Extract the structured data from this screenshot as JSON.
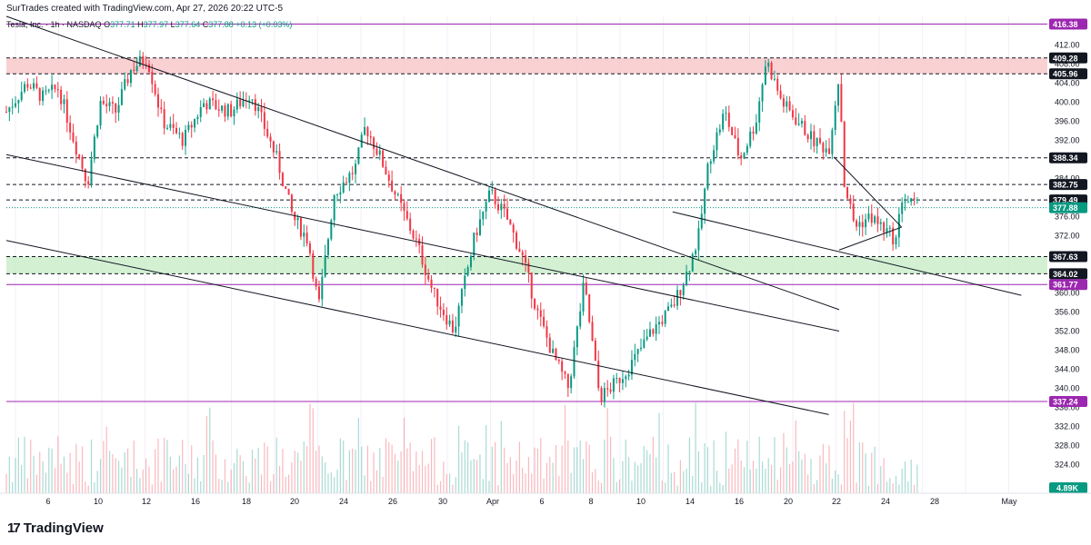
{
  "header": {
    "credit": "SurTrades created with TradingView.com, Apr 27, 2026 20:22 UTC-5",
    "symbol": "Tesla, Inc. · 1h · NASDAQ",
    "ohlc": {
      "o": "377.71",
      "h": "377.97",
      "l": "377.64",
      "c": "377.88",
      "chg": "+0.13 (+0.03%)"
    },
    "labels": {
      "o": "O",
      "h": "H",
      "l": "L",
      "c": "C"
    }
  },
  "footer": {
    "brand": "TradingView",
    "logo_icon": "tradingview-logo-icon"
  },
  "colors": {
    "up": "#089981",
    "down": "#f23645",
    "resistance_zone": "#f7c5c8",
    "support_zone": "#c8ecc8",
    "purple": "#9c27b0",
    "last_price": "#089981",
    "badge_dark": "#131722"
  },
  "chart_data": {
    "type": "candlestick",
    "timeframe": "1h",
    "y_axis": {
      "min": 318,
      "max": 418,
      "ticks": [
        412,
        408,
        404,
        400,
        396,
        392,
        388,
        384,
        380,
        376,
        372,
        368,
        364,
        360,
        356,
        352,
        348,
        344,
        340,
        336,
        332,
        328,
        324
      ]
    },
    "x_axis": {
      "tick_labels": [
        "6",
        "10",
        "12",
        "16",
        "18",
        "20",
        "24",
        "26",
        "30",
        "Apr",
        "6",
        "8",
        "10",
        "14",
        "16",
        "20",
        "22",
        "24",
        "28",
        "May"
      ]
    },
    "price_levels": [
      {
        "value": 416.38,
        "style": "solid",
        "color": "purple",
        "label": "416.38"
      },
      {
        "value": 409.28,
        "style": "dashed",
        "color": "dark",
        "label": "409.28"
      },
      {
        "value": 405.96,
        "style": "dashed",
        "color": "dark",
        "label": "405.96"
      },
      {
        "value": 388.34,
        "style": "dashed",
        "color": "dark",
        "label": "388.34"
      },
      {
        "value": 382.75,
        "style": "dashed",
        "color": "dark",
        "label": "382.75"
      },
      {
        "value": 379.49,
        "style": "dashed",
        "color": "dark",
        "label": "379.49"
      },
      {
        "value": 367.63,
        "style": "dashed",
        "color": "dark",
        "label": "367.63"
      },
      {
        "value": 364.02,
        "style": "dashed",
        "color": "dark",
        "label": "364.02"
      },
      {
        "value": 361.77,
        "style": "solid",
        "color": "purple",
        "label": "361.77"
      },
      {
        "value": 337.24,
        "style": "solid",
        "color": "purple",
        "label": "337.24"
      }
    ],
    "last_price": {
      "value": 377.88,
      "label": "377.88"
    },
    "volume_label": "4.89K",
    "zones": [
      {
        "name": "resistance",
        "from": 405.96,
        "to": 409.28
      },
      {
        "name": "support",
        "from": 364.02,
        "to": 367.63
      }
    ],
    "trendlines": [
      {
        "from": [
          0.0,
          418
        ],
        "to": [
          0.8,
          356.5
        ]
      },
      {
        "from": [
          0.0,
          389
        ],
        "to": [
          0.8,
          352.0
        ]
      },
      {
        "from": [
          0.0,
          371
        ],
        "to": [
          0.79,
          334.5
        ]
      },
      {
        "from": [
          0.795,
          388.5
        ],
        "to": [
          0.86,
          373.8
        ]
      },
      {
        "from": [
          0.8,
          369.0
        ],
        "to": [
          0.86,
          373.8
        ]
      },
      {
        "from": [
          0.64,
          377.0
        ],
        "to": [
          0.975,
          359.5
        ]
      }
    ],
    "price_path": [
      [
        0.0,
        398
      ],
      [
        0.02,
        404
      ],
      [
        0.035,
        401
      ],
      [
        0.05,
        403
      ],
      [
        0.065,
        392
      ],
      [
        0.078,
        383
      ],
      [
        0.09,
        400
      ],
      [
        0.105,
        398
      ],
      [
        0.12,
        407
      ],
      [
        0.135,
        409.5
      ],
      [
        0.15,
        396
      ],
      [
        0.17,
        392
      ],
      [
        0.19,
        400
      ],
      [
        0.215,
        398
      ],
      [
        0.235,
        402
      ],
      [
        0.26,
        388
      ],
      [
        0.275,
        376
      ],
      [
        0.29,
        371
      ],
      [
        0.3,
        357
      ],
      [
        0.315,
        381
      ],
      [
        0.335,
        386
      ],
      [
        0.345,
        395
      ],
      [
        0.36,
        388
      ],
      [
        0.375,
        380
      ],
      [
        0.395,
        370
      ],
      [
        0.41,
        360
      ],
      [
        0.43,
        352
      ],
      [
        0.45,
        372
      ],
      [
        0.465,
        381
      ],
      [
        0.48,
        376
      ],
      [
        0.495,
        368
      ],
      [
        0.51,
        356
      ],
      [
        0.525,
        347
      ],
      [
        0.54,
        340
      ],
      [
        0.555,
        362
      ],
      [
        0.57,
        338
      ],
      [
        0.585,
        341
      ],
      [
        0.6,
        345
      ],
      [
        0.62,
        352
      ],
      [
        0.64,
        357
      ],
      [
        0.655,
        365
      ],
      [
        0.665,
        372
      ],
      [
        0.675,
        388
      ],
      [
        0.69,
        398
      ],
      [
        0.705,
        388
      ],
      [
        0.72,
        396
      ],
      [
        0.73,
        409
      ],
      [
        0.745,
        400
      ],
      [
        0.76,
        396
      ],
      [
        0.775,
        392
      ],
      [
        0.79,
        390
      ],
      [
        0.8,
        406
      ],
      [
        0.805,
        383
      ],
      [
        0.815,
        374
      ],
      [
        0.83,
        376
      ],
      [
        0.845,
        373
      ],
      [
        0.855,
        371
      ],
      [
        0.86,
        380
      ],
      [
        0.875,
        378
      ]
    ],
    "last_x": 0.875
  }
}
